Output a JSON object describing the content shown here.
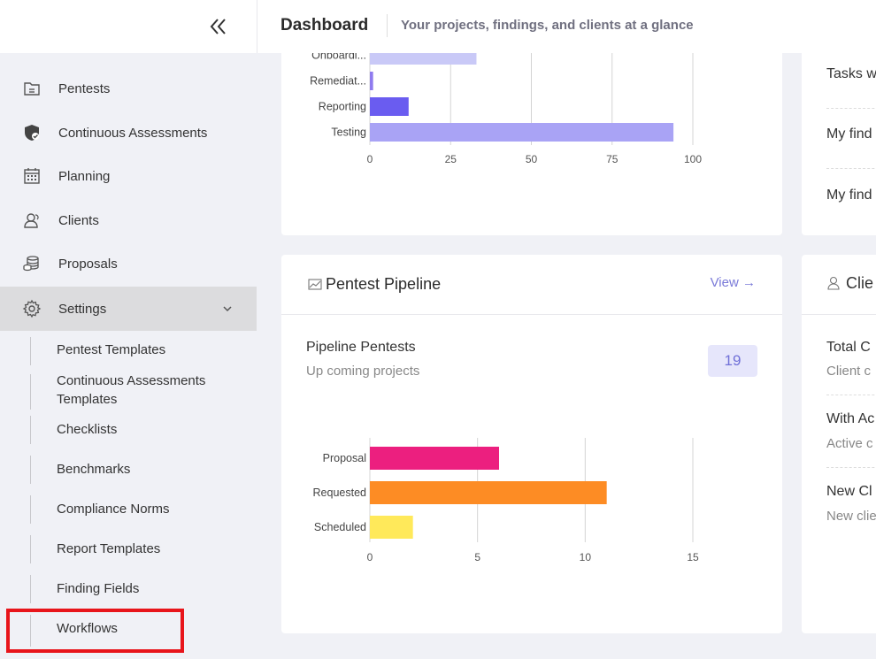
{
  "header": {
    "title": "Dashboard",
    "subtitle": "Your projects, findings, and clients at a glance"
  },
  "sidebar": {
    "items": [
      {
        "label": "Pentests",
        "icon": "pentests-icon"
      },
      {
        "label": "Continuous Assessments",
        "icon": "shield-icon"
      },
      {
        "label": "Planning",
        "icon": "calendar-icon"
      },
      {
        "label": "Clients",
        "icon": "clients-icon"
      },
      {
        "label": "Proposals",
        "icon": "coins-icon"
      },
      {
        "label": "Settings",
        "icon": "gear-icon",
        "expanded": true
      }
    ],
    "settings_sub": [
      "Pentest Templates",
      "Continuous Assessments Templates",
      "Checklists",
      "Benchmarks",
      "Compliance Norms",
      "Report Templates",
      "Finding Fields",
      "Workflows"
    ]
  },
  "pipeline_card": {
    "title": "Pentest Pipeline",
    "view_label": "View →",
    "section_title": "Pipeline Pentests",
    "section_sub": "Up coming projects",
    "count": "19"
  },
  "right_top": {
    "lines": [
      "Tasks w",
      "My find",
      "My find"
    ]
  },
  "right_bottom": {
    "title": "Clie",
    "lines": [
      {
        "title": "Total C",
        "sub": "Client c"
      },
      {
        "title": "With Ac",
        "sub": "Active c"
      },
      {
        "title": "New Cl",
        "sub": "New clie"
      }
    ]
  },
  "chart_data": [
    {
      "type": "bar",
      "orientation": "horizontal",
      "categories": [
        "Onboardi...",
        "Remediat...",
        "Reporting",
        "Testing"
      ],
      "values": [
        33,
        1,
        12,
        94
      ],
      "colors": [
        "#c9c9f7",
        "#8f7bef",
        "#6a5cf0",
        "#a9a3f5"
      ],
      "xticks": [
        0,
        25,
        50,
        75,
        100
      ],
      "xlim": [
        0,
        100
      ],
      "grid": true
    },
    {
      "type": "bar",
      "orientation": "horizontal",
      "categories": [
        "Proposal",
        "Requested",
        "Scheduled"
      ],
      "values": [
        6,
        11,
        2
      ],
      "colors": [
        "#ec1f7f",
        "#fd8c24",
        "#ffe95a"
      ],
      "xticks": [
        0,
        5,
        10,
        15
      ],
      "xlim": [
        0,
        15
      ],
      "grid": true
    }
  ]
}
